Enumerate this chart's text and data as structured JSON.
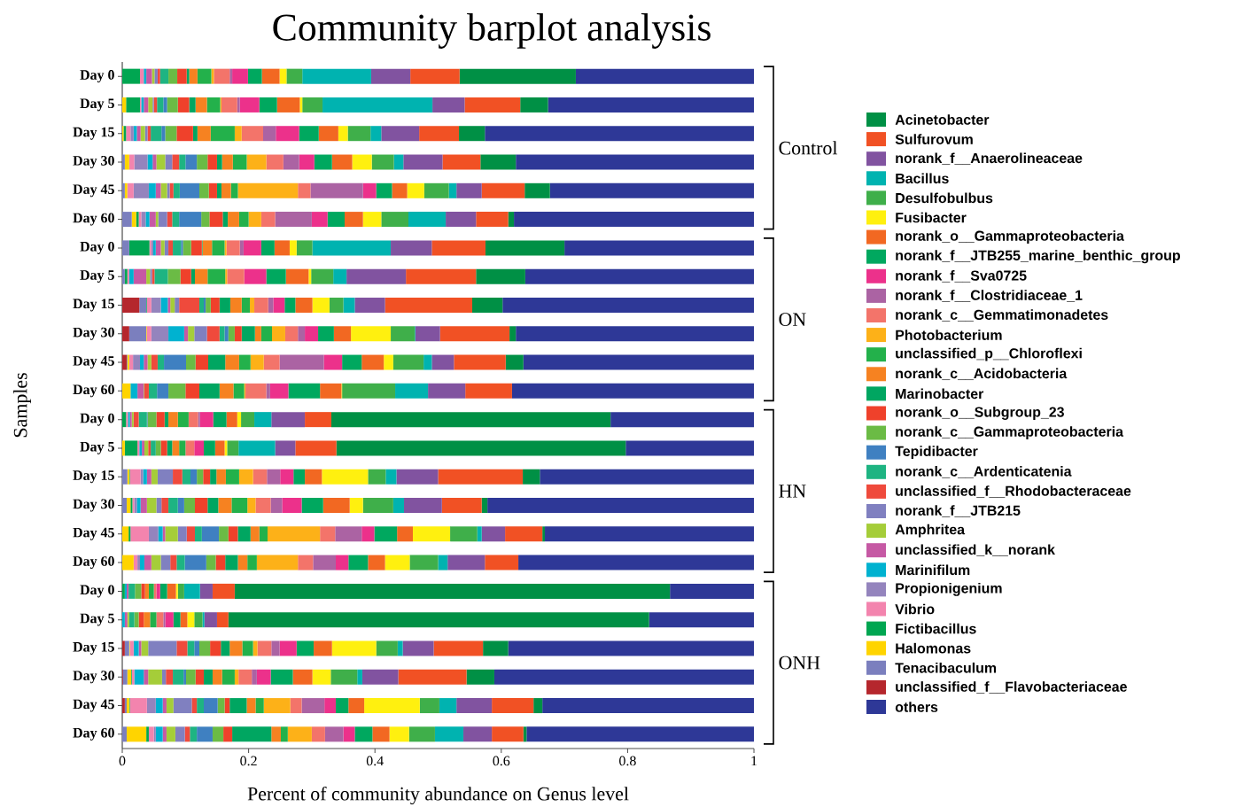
{
  "chart_data": {
    "type": "bar",
    "orientation": "horizontal",
    "stacked": true,
    "legend": "right",
    "title": "Community barplot analysis",
    "xlabel": "Percent of community abundance on Genus level",
    "ylabel": "Samples",
    "categories": [
      "Day 0",
      "Day 5",
      "Day 15",
      "Day 30",
      "Day 45",
      "Day 60",
      "Day 0",
      "Day 5",
      "Day 15",
      "Day 30",
      "Day 45",
      "Day 60",
      "Day 0",
      "Day 5",
      "Day 15",
      "Day 30",
      "Day 45",
      "Day 60",
      "Day 0",
      "Day 5",
      "Day 15",
      "Day 30",
      "Day 45",
      "Day 60"
    ],
    "xlim": [
      0,
      1
    ],
    "xticks": [
      0,
      0.2,
      0.4,
      0.6,
      0.8,
      1
    ],
    "annotations": [
      "Control",
      "ON",
      "HN",
      "ONH"
    ],
    "series": [
      {
        "name": "unclassified_f__Flavobacteriaceae",
        "color": "#b5272d",
        "values": [
          0,
          0,
          0,
          0,
          0,
          0,
          0,
          0,
          0.027,
          0.011,
          0.007,
          0,
          0,
          0,
          0,
          0,
          0,
          0,
          0,
          0,
          0.004,
          0.001,
          0.004,
          0
        ]
      },
      {
        "name": "Tenacibaculum",
        "color": "#7b7fbe",
        "values": [
          0,
          0,
          0,
          0.004,
          0.004,
          0.015,
          0.011,
          0.004,
          0.011,
          0.027,
          0.001,
          0,
          0,
          0,
          0.008,
          0.007,
          0,
          0,
          0,
          0,
          0.007,
          0.007,
          0.003,
          0.007
        ]
      },
      {
        "name": "Halomonas",
        "color": "#ffd400",
        "values": [
          0,
          0.006,
          0.002,
          0.007,
          0.004,
          0.007,
          0,
          0,
          0,
          0.001,
          0.003,
          0.013,
          0,
          0.004,
          0.003,
          0.006,
          0.01,
          0.018,
          0,
          0,
          0.001,
          0.006,
          0.004,
          0.031
        ]
      },
      {
        "name": "Fictibacillus",
        "color": "#00a651",
        "values": [
          0.028,
          0.022,
          0.004,
          0,
          0,
          0.004,
          0.032,
          0.004,
          0.001,
          0,
          0,
          0,
          0.006,
          0.02,
          0.001,
          0.003,
          0.003,
          0,
          0.004,
          0,
          0,
          0.001,
          0.001,
          0.004
        ]
      },
      {
        "name": "Vibrio",
        "color": "#f384ae",
        "values": [
          0.006,
          0.002,
          0.007,
          0.008,
          0.01,
          0.004,
          0.003,
          0.003,
          0.007,
          0.007,
          0.006,
          0,
          0.003,
          0.003,
          0.017,
          0.003,
          0.029,
          0.006,
          0,
          0,
          0.006,
          0.004,
          0.027,
          0.008
        ]
      },
      {
        "name": "Propionigenium",
        "color": "#9484bd",
        "values": [
          0,
          0,
          0.005,
          0.021,
          0.024,
          0.007,
          0.003,
          0,
          0.015,
          0.027,
          0.011,
          0,
          0,
          0,
          0.004,
          0.004,
          0.015,
          0.004,
          0,
          0,
          0,
          0,
          0.014,
          0.003
        ]
      },
      {
        "name": "Marinifilum",
        "color": "#00b2d0",
        "values": [
          0.004,
          0.004,
          0.005,
          0.008,
          0.011,
          0.006,
          0.004,
          0.007,
          0.011,
          0.025,
          0.006,
          0.011,
          0.003,
          0.004,
          0.006,
          0.006,
          0.007,
          0.007,
          0.003,
          0.004,
          0.008,
          0.015,
          0.011,
          0.011
        ]
      },
      {
        "name": "unclassified_k__norank",
        "color": "#c659a4",
        "values": [
          0.009,
          0.007,
          0.006,
          0.006,
          0.008,
          0.01,
          0.008,
          0.02,
          0.004,
          0.006,
          0.006,
          0.01,
          0.003,
          0.004,
          0.007,
          0.01,
          0.004,
          0.011,
          0.003,
          0.004,
          0.004,
          0.007,
          0.006,
          0.006
        ]
      },
      {
        "name": "Amphritea",
        "color": "#a5cd39",
        "values": [
          0.004,
          0.007,
          0.007,
          0.014,
          0.01,
          0.004,
          0.006,
          0.006,
          0.007,
          0.01,
          0.006,
          0.001,
          0.003,
          0.006,
          0.01,
          0.015,
          0.02,
          0.015,
          0,
          0.003,
          0.011,
          0.022,
          0.011,
          0.014
        ]
      },
      {
        "name": "norank_f__JTB215",
        "color": "#8080c0",
        "values": [
          0.005,
          0.002,
          0.004,
          0.011,
          0.004,
          0.014,
          0.006,
          0.003,
          0.007,
          0.02,
          0,
          0,
          0,
          0,
          0.024,
          0.008,
          0.014,
          0.015,
          0,
          0,
          0.045,
          0.006,
          0.029,
          0.015
        ]
      },
      {
        "name": "unclassified_f__Rhodobacteraceae",
        "color": "#ef4a3c",
        "values": [
          0.004,
          0.005,
          0.005,
          0.011,
          0.006,
          0.008,
          0.007,
          0.004,
          0.032,
          0.02,
          0.01,
          0.007,
          0.008,
          0.004,
          0.015,
          0.011,
          0.013,
          0.01,
          0,
          0,
          0.017,
          0.011,
          0.008,
          0.008
        ]
      },
      {
        "name": "norank_c__Ardenticatenia",
        "color": "#1eb482",
        "values": [
          0.013,
          0.01,
          0.017,
          0.01,
          0.01,
          0.011,
          0.013,
          0.021,
          0.007,
          0.008,
          0.01,
          0.013,
          0.013,
          0.008,
          0.013,
          0.015,
          0.011,
          0.013,
          0.01,
          0.008,
          0.011,
          0.017,
          0.011,
          0.011
        ]
      },
      {
        "name": "Tepidibacter",
        "color": "#3f80c1",
        "values": [
          0,
          0.006,
          0.006,
          0.018,
          0.031,
          0.035,
          0.003,
          0,
          0.003,
          0.006,
          0.035,
          0.018,
          0.001,
          0,
          0.01,
          0.01,
          0.027,
          0.034,
          0,
          0,
          0.008,
          0.004,
          0.022,
          0.025
        ]
      },
      {
        "name": "norank_c__Gammaproteobacteria",
        "color": "#6bbb45",
        "values": [
          0.014,
          0.017,
          0.018,
          0.017,
          0.015,
          0.013,
          0.013,
          0.02,
          0.008,
          0.01,
          0.015,
          0.027,
          0.014,
          0.008,
          0.01,
          0.017,
          0.015,
          0.015,
          0.01,
          0.007,
          0.017,
          0.015,
          0.011,
          0.017
        ]
      },
      {
        "name": "norank_o__Subgroup_23",
        "color": "#ef412b",
        "values": [
          0.015,
          0.018,
          0.026,
          0.015,
          0.013,
          0.021,
          0.017,
          0.017,
          0.014,
          0.011,
          0.02,
          0.022,
          0.013,
          0.01,
          0.011,
          0.02,
          0.015,
          0.015,
          0.006,
          0.008,
          0.017,
          0.013,
          0.008,
          0.014
        ]
      },
      {
        "name": "Marinobacter",
        "color": "#00a661",
        "values": [
          0.004,
          0.01,
          0.007,
          0.008,
          0.007,
          0.008,
          0.001,
          0.006,
          0.017,
          0.021,
          0.027,
          0.032,
          0.006,
          0.008,
          0.01,
          0.017,
          0.02,
          0.02,
          0,
          0,
          0.014,
          0.014,
          0.027,
          0.062
        ]
      },
      {
        "name": "norank_c__Acidobacteria",
        "color": "#f68221",
        "values": [
          0.013,
          0.018,
          0.021,
          0.017,
          0.015,
          0.018,
          0.015,
          0.02,
          0.018,
          0.01,
          0.022,
          0.022,
          0.015,
          0.011,
          0.015,
          0.021,
          0.014,
          0.015,
          0.006,
          0.01,
          0.02,
          0.015,
          0.014,
          0.015
        ]
      },
      {
        "name": "unclassified_p__Chloroflexi",
        "color": "#23b14b",
        "values": [
          0.022,
          0.021,
          0.038,
          0.022,
          0.011,
          0.015,
          0.02,
          0.028,
          0.013,
          0.017,
          0.018,
          0.017,
          0.017,
          0.01,
          0.021,
          0.025,
          0.013,
          0.015,
          0.008,
          0.01,
          0.017,
          0.02,
          0.013,
          0.011
        ]
      },
      {
        "name": "Photobacterium",
        "color": "#fdb118",
        "values": [
          0.004,
          0.002,
          0.011,
          0.031,
          0.095,
          0.02,
          0.003,
          0.003,
          0.007,
          0.021,
          0.021,
          0.002,
          0,
          0,
          0.022,
          0.013,
          0.083,
          0.065,
          0,
          0,
          0.007,
          0.006,
          0.042,
          0.038
        ]
      },
      {
        "name": "norank_c__Gemmatimonadetes",
        "color": "#f3746a",
        "values": [
          0.025,
          0.025,
          0.034,
          0.027,
          0.02,
          0.022,
          0.021,
          0.027,
          0.022,
          0.02,
          0.025,
          0.033,
          0.015,
          0.014,
          0.022,
          0.024,
          0.024,
          0.024,
          0.004,
          0.011,
          0.022,
          0.021,
          0.018,
          0.021
        ]
      },
      {
        "name": "norank_f__Clostridiaceae_1",
        "color": "#ab63a3",
        "values": [
          0.004,
          0.004,
          0.02,
          0.025,
          0.083,
          0.058,
          0.006,
          0,
          0.008,
          0.011,
          0.07,
          0.006,
          0.003,
          0,
          0.021,
          0.018,
          0.042,
          0.036,
          0,
          0.003,
          0.013,
          0.008,
          0.036,
          0.029
        ]
      },
      {
        "name": "norank_f__Sva0725",
        "color": "#ec318b",
        "values": [
          0.025,
          0.031,
          0.037,
          0.024,
          0.021,
          0.025,
          0.028,
          0.035,
          0.018,
          0.021,
          0.029,
          0.029,
          0.021,
          0.015,
          0.021,
          0.031,
          0.02,
          0.02,
          0.006,
          0.013,
          0.027,
          0.022,
          0.018,
          0.018
        ]
      },
      {
        "name": "norank_f__JTB255_marine_benthic_group",
        "color": "#00a85f",
        "values": [
          0.022,
          0.028,
          0.031,
          0.028,
          0.025,
          0.027,
          0.021,
          0.031,
          0.017,
          0.025,
          0.031,
          0.05,
          0.021,
          0.018,
          0.018,
          0.034,
          0.036,
          0.031,
          0.011,
          0.011,
          0.027,
          0.035,
          0.02,
          0.028
        ]
      },
      {
        "name": "norank_o__Gammaproteobacteria",
        "color": "#f26822",
        "values": [
          0.028,
          0.036,
          0.031,
          0.032,
          0.024,
          0.029,
          0.024,
          0.036,
          0.027,
          0.027,
          0.035,
          0.034,
          0.017,
          0.015,
          0.027,
          0.042,
          0.025,
          0.027,
          0.014,
          0.011,
          0.029,
          0.031,
          0.025,
          0.027
        ]
      },
      {
        "name": "Fusibacter",
        "color": "#fff00f",
        "values": [
          0.011,
          0.004,
          0.015,
          0.031,
          0.027,
          0.029,
          0.011,
          0.004,
          0.027,
          0.063,
          0.015,
          0.001,
          0.006,
          0.004,
          0.073,
          0.021,
          0.059,
          0.039,
          0.003,
          0.011,
          0.07,
          0.029,
          0.088,
          0.031
        ]
      },
      {
        "name": "Desulfobulbus",
        "color": "#3faf4a",
        "values": [
          0.025,
          0.032,
          0.036,
          0.035,
          0.039,
          0.043,
          0.025,
          0.035,
          0.022,
          0.038,
          0.048,
          0.084,
          0.021,
          0.018,
          0.028,
          0.048,
          0.043,
          0.045,
          0.01,
          0.013,
          0.034,
          0.042,
          0.031,
          0.041
        ]
      },
      {
        "name": "Bacillus",
        "color": "#00b3b0",
        "values": [
          0.109,
          0.174,
          0.017,
          0.015,
          0.012,
          0.059,
          0.124,
          0.021,
          0.018,
          0.001,
          0.013,
          0.052,
          0.027,
          0.058,
          0.017,
          0.017,
          0.007,
          0.015,
          0.025,
          0.003,
          0.008,
          0.008,
          0.027,
          0.045
        ]
      },
      {
        "name": "norank_f__Anaerolineaceae",
        "color": "#8153a0",
        "values": [
          0.062,
          0.051,
          0.06,
          0.062,
          0.04,
          0.048,
          0.065,
          0.094,
          0.048,
          0.039,
          0.035,
          0.059,
          0.053,
          0.032,
          0.066,
          0.06,
          0.037,
          0.059,
          0.02,
          0.02,
          0.049,
          0.057,
          0.056,
          0.045
        ]
      },
      {
        "name": "Sulfurovum",
        "color": "#f15124",
        "values": [
          0.078,
          0.088,
          0.063,
          0.06,
          0.068,
          0.051,
          0.085,
          0.111,
          0.138,
          0.11,
          0.082,
          0.074,
          0.042,
          0.065,
          0.134,
          0.063,
          0.059,
          0.053,
          0.035,
          0.018,
          0.078,
          0.108,
          0.066,
          0.05
        ]
      },
      {
        "name": "Acinetobacter",
        "color": "#009045",
        "values": [
          0.184,
          0.044,
          0.041,
          0.056,
          0.04,
          0.009,
          0.125,
          0.078,
          0.048,
          0.01,
          0.028,
          0,
          0.442,
          0.458,
          0.027,
          0.009,
          0.004,
          0,
          0.689,
          0.666,
          0.04,
          0.044,
          0.014,
          0.005
        ]
      },
      {
        "name": "others",
        "color": "#2e3897",
        "values": [
          0.282,
          0.326,
          0.426,
          0.377,
          0.323,
          0.38,
          0.3,
          0.362,
          0.398,
          0.377,
          0.365,
          0.383,
          0.227,
          0.203,
          0.339,
          0.422,
          0.331,
          0.373,
          0.133,
          0.166,
          0.389,
          0.411,
          0.335,
          0.36
        ]
      }
    ]
  }
}
